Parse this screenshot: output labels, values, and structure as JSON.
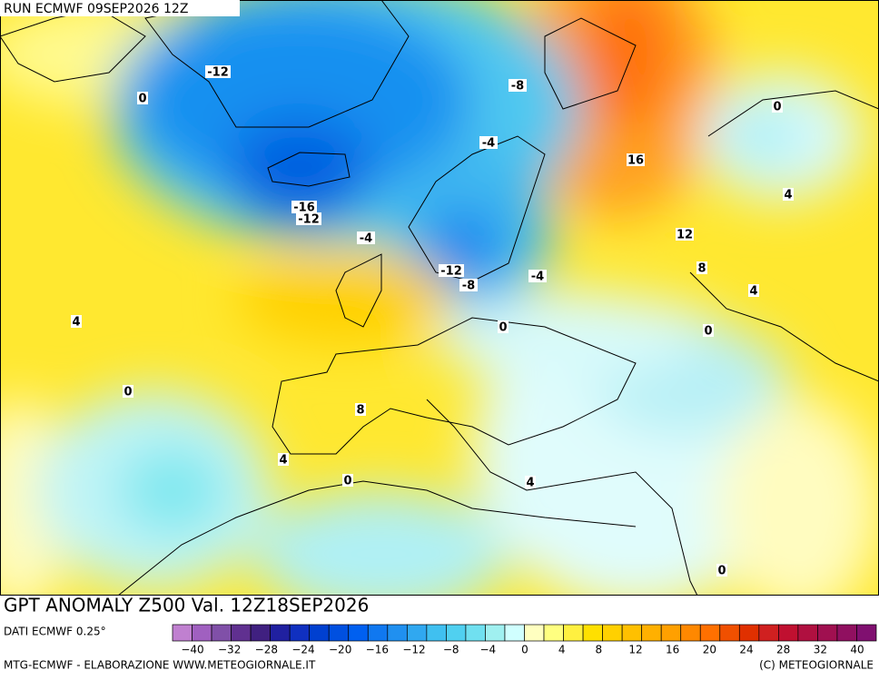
{
  "header": {
    "run": "RUN ECMWF 09SEP2026 12Z"
  },
  "map": {
    "contour_labels": [
      "-12",
      "0",
      "-8",
      "-4",
      "0",
      "16",
      "4",
      "-16",
      "-12",
      "12",
      "-4",
      "8",
      "-12",
      "-8",
      "-4",
      "4",
      "4",
      "0",
      "0",
      "0",
      "8",
      "4",
      "0",
      "4",
      "0"
    ]
  },
  "footer": {
    "title": "GPT ANOMALY Z500 Val. 12Z18SEP2026",
    "source": "DATI ECMWF 0.25°",
    "credit_left": "MTG-ECMWF - ELABORAZIONE WWW.METEOGIORNALE.IT",
    "credit_right": "(C) METEOGIORNALE"
  },
  "colorbar": {
    "colors": [
      "#c080d0",
      "#a060c0",
      "#8050a8",
      "#603090",
      "#402080",
      "#2020a0",
      "#1030c0",
      "#0040d0",
      "#0050e0",
      "#0060f0",
      "#1078f0",
      "#2090f0",
      "#30a8f0",
      "#40c0f0",
      "#50d0f0",
      "#70e0f0",
      "#a0f0f0",
      "#d0ffff",
      "#ffffc0",
      "#ffff80",
      "#fff040",
      "#ffe000",
      "#ffd000",
      "#ffc000",
      "#ffb000",
      "#ffa000",
      "#ff8800",
      "#ff7000",
      "#f05000",
      "#e03000",
      "#d02020",
      "#c01030",
      "#b01040",
      "#a01050",
      "#901060",
      "#801070"
    ],
    "labels": [
      "−40",
      "−32",
      "−28",
      "−24",
      "−20",
      "−16",
      "−12",
      "−8",
      "−4",
      "0",
      "4",
      "8",
      "12",
      "16",
      "20",
      "24",
      "28",
      "32",
      "40"
    ]
  }
}
